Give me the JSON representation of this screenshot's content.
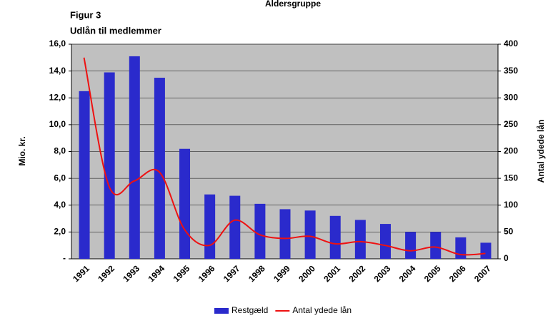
{
  "chart_data": {
    "type": "bar_line",
    "title": "Aldersgruppe",
    "subtitle": "Figur 3",
    "subtitle2": "Udlån til medlemmer",
    "ylabel": "Mio. kr.",
    "y2label": "Antal ydede lån",
    "categories": [
      "1991",
      "1992",
      "1993",
      "1994",
      "1995",
      "1996",
      "1997",
      "1998",
      "1999",
      "2000",
      "2001",
      "2002",
      "2003",
      "2004",
      "2005",
      "2006",
      "2007"
    ],
    "series": [
      {
        "name": "Restgæld",
        "color": "#2a2acc",
        "kind": "bar",
        "values": [
          12.5,
          13.9,
          15.1,
          13.5,
          8.2,
          4.8,
          4.7,
          4.1,
          3.7,
          3.6,
          3.2,
          2.9,
          2.6,
          2.0,
          2.0,
          1.6,
          1.2
        ]
      },
      {
        "name": "Antal ydede lån",
        "color": "#ee1111",
        "kind": "line",
        "axis": "y2",
        "values": [
          375,
          135,
          145,
          162,
          55,
          25,
          72,
          45,
          38,
          42,
          28,
          32,
          25,
          15,
          22,
          8,
          10
        ]
      }
    ],
    "ylim": [
      0,
      16
    ],
    "yticks": [
      {
        "value": 0,
        "label": "-"
      },
      {
        "value": 2,
        "label": "2,0"
      },
      {
        "value": 4,
        "label": "4,0"
      },
      {
        "value": 6,
        "label": "6,0"
      },
      {
        "value": 8,
        "label": "8,0"
      },
      {
        "value": 10,
        "label": "10,0"
      },
      {
        "value": 12,
        "label": "12,0"
      },
      {
        "value": 14,
        "label": "14,0"
      },
      {
        "value": 16,
        "label": "16,0"
      }
    ],
    "y2lim": [
      0,
      400
    ],
    "y2ticks": [
      0,
      50,
      100,
      150,
      200,
      250,
      300,
      350,
      400
    ],
    "legend": "bottom"
  }
}
